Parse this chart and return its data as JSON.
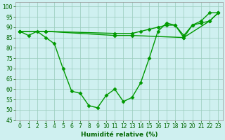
{
  "xlabel": "Humidité relative (%)",
  "background_color": "#cff0f0",
  "grid_color": "#99ccbb",
  "line_color": "#009900",
  "xlim": [
    -0.5,
    23.5
  ],
  "ylim": [
    45,
    102
  ],
  "yticks": [
    45,
    50,
    55,
    60,
    65,
    70,
    75,
    80,
    85,
    90,
    95,
    100
  ],
  "xticks": [
    0,
    1,
    2,
    3,
    4,
    5,
    6,
    7,
    8,
    9,
    10,
    11,
    12,
    13,
    14,
    15,
    16,
    17,
    18,
    19,
    20,
    21,
    22,
    23
  ],
  "line1_x": [
    0,
    1,
    2,
    3,
    4,
    5,
    6,
    7,
    8,
    9,
    10,
    11,
    12,
    13,
    14,
    15,
    16,
    17,
    18,
    19,
    20,
    21,
    22,
    23
  ],
  "line1_y": [
    88,
    86,
    88,
    85,
    82,
    70,
    59,
    58,
    52,
    51,
    57,
    60,
    54,
    56,
    63,
    75,
    88,
    92,
    91,
    85,
    91,
    93,
    97,
    97
  ],
  "line2_x": [
    0,
    3,
    11,
    13,
    19,
    22,
    23
  ],
  "line2_y": [
    88,
    88,
    86,
    86,
    85,
    93,
    97
  ],
  "line3_x": [
    0,
    3,
    11,
    13,
    14,
    15,
    16,
    17,
    18,
    19,
    20,
    21,
    22,
    23
  ],
  "line3_y": [
    88,
    88,
    87,
    87,
    88,
    89,
    90,
    91,
    91,
    86,
    91,
    92,
    93,
    97
  ]
}
